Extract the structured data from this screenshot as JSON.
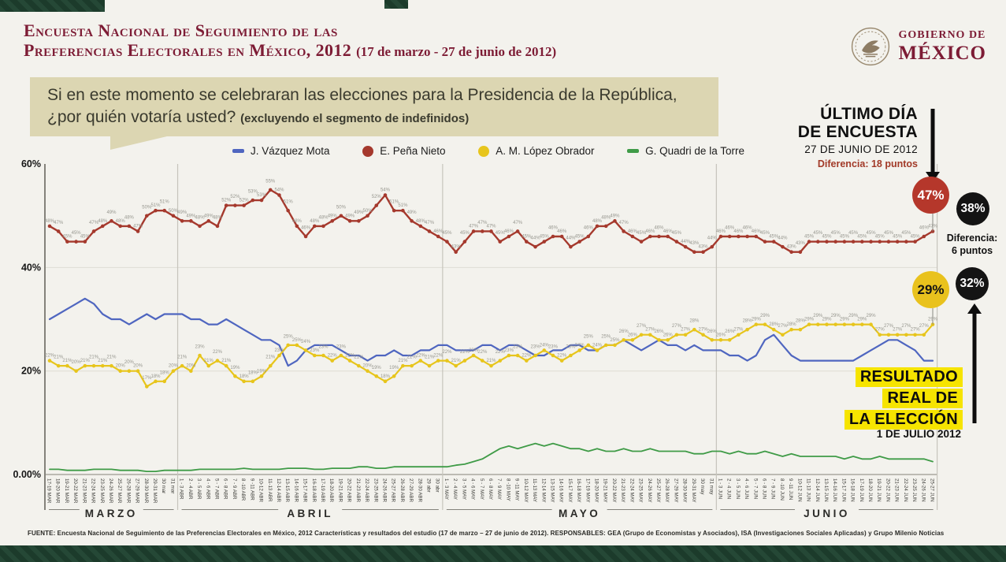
{
  "header": {
    "title_line1": "Encuesta Nacional de Seguimiento de las",
    "title_line2": "Preferencias Electorales en México, 2012",
    "title_daterange": "(17 de marzo - 27 de junio de 2012)",
    "logo_line1": "GOBIERNO DE",
    "logo_line2": "MÉXICO"
  },
  "question": {
    "text": "Si en este momento se celebraran las elecciones para la Presidencia de la República, ¿por quién votaría usted?",
    "note": "(excluyendo el segmento de indefinidos)"
  },
  "legend": {
    "items": [
      {
        "label": "J. Vázquez Mota",
        "color": "#4f66c0",
        "marker": "dash"
      },
      {
        "label": "E. Peña Nieto",
        "color": "#a5392d",
        "marker": "circle"
      },
      {
        "label": "A. M. López Obrador",
        "color": "#e7c51c",
        "marker": "circle"
      },
      {
        "label": "G. Quadri de la Torre",
        "color": "#3f9b47",
        "marker": "dash"
      }
    ]
  },
  "annotations": {
    "last_day_line1": "ÚLTIMO DÍA",
    "last_day_line2": "DE ENCUESTA",
    "last_day_date": "27 DE JUNIO DE 2012",
    "diff_top": "Diferencia: 18 puntos",
    "diff_top_color": "#a23a28",
    "diff_mid_line1": "Diferencia:",
    "diff_mid_line2": "6 puntos",
    "badges": {
      "pena_survey": {
        "value": "47%",
        "bg": "#b5372b",
        "fg": "#ffffff"
      },
      "pena_real": {
        "value": "38%",
        "bg": "#141414",
        "fg": "#ffffff"
      },
      "amlo_real": {
        "value": "32%",
        "bg": "#141414",
        "fg": "#ffffff"
      },
      "amlo_survey": {
        "value": "29%",
        "bg": "#e9c21d",
        "fg": "#141414"
      }
    },
    "result_line1": "RESULTADO",
    "result_line2": "REAL DE",
    "result_line3": "LA ELECCIÓN",
    "result_date": "1 DE JULIO 2012",
    "highlight_color": "#f6e400"
  },
  "footer": "FUENTE: Encuesta Nacional de Seguimiento de las Preferencias Electorales en México, 2012 Características y resultados del estudio (17 de marzo – 27 de junio de 2012). RESPONSABLES: GEA (Grupo de Economistas y Asociados), ISA (Investigaciones Sociales Aplicadas) y Grupo Milenio Noticias",
  "chart_data": {
    "type": "line",
    "title": "Seguimiento diario de preferencias electorales (promedios móviles de 3 días)",
    "ylim": [
      0,
      60
    ],
    "yticks": [
      {
        "value": 0,
        "label": "0.00%"
      },
      {
        "value": 20,
        "label": "20%"
      },
      {
        "value": 40,
        "label": "40%"
      },
      {
        "value": 60,
        "label": "60%"
      }
    ],
    "grid": "horizontal-light",
    "legend_position": "top",
    "months": [
      {
        "name": "MARZO",
        "count": 15
      },
      {
        "name": "ABRIL",
        "count": 30
      },
      {
        "name": "MAYO",
        "count": 31
      },
      {
        "name": "JUNIO",
        "count": 25
      }
    ],
    "x_labels": [
      "17-19 MAR",
      "18-20 MAR",
      "19-21 MAR",
      "20-22 MAR",
      "21-23 MAR",
      "22-24 MAR",
      "23-25 MAR",
      "24-26 MAR",
      "25-27 MAR",
      "26-28 MAR",
      "27-29 MAR",
      "28-30 MAR",
      "29-31 MAR",
      "30 mar",
      "31 mar",
      "1 - 3 ABR",
      "2 - 4 ABR",
      "3 - 5 ABR",
      "4 - 6 ABR",
      "5 - 7 ABR",
      "6 - 8 ABR",
      "7 - 9 ABR",
      "8 -10 ABR",
      "9 -11 ABR",
      "10-12 ABR",
      "11-13 ABR",
      "12-14 ABR",
      "13-15 ABR",
      "14-16 ABR",
      "15-17 ABR",
      "16-18 ABR",
      "17-19 ABR",
      "18-20 ABR",
      "19-21 ABR",
      "20-22 ABR",
      "21-23 ABR",
      "22-24 ABR",
      "23-25 ABR",
      "24-26 ABR",
      "25-27 ABR",
      "26-28 ABR",
      "27-29 ABR",
      "28-30 ABR",
      "29 abr",
      "30 abr",
      "1 - 3 MAY",
      "2 - 4 MAY",
      "3 - 5 MAY",
      "4 - 6 MAY",
      "5 - 7 MAY",
      "6 - 8 MAY",
      "7 - 9 MAY",
      "8 -10 MAY",
      "9 -11 MAY",
      "10-12 MAY",
      "11-13 MAY",
      "12-14 MAY",
      "13-15 MAY",
      "14-16 MAY",
      "15-17 MAY",
      "16-18 MAY",
      "17-19 MAY",
      "18-20 MAY",
      "19-21 MAY",
      "20-22 MAY",
      "21-23 MAY",
      "22-24 MAY",
      "23-25 MAY",
      "24-26 MAY",
      "25-27 MAY",
      "26-28 MAY",
      "27-29 MAY",
      "28-30 MAY",
      "29-31 MAY",
      "30 may",
      "31 may",
      "1 - 3 JUN",
      "2 - 4 JUN",
      "3 - 5 JUN",
      "4 - 6 JUN",
      "5 - 7 JUN",
      "6 - 8 JUN",
      "7 - 9 JUN",
      "8 -10 JUN",
      "9 -11 JUN",
      "10-12 JUN",
      "11-13 JUN",
      "12-14 JUN",
      "13-15 JUN",
      "14-16 JUN",
      "15-17 JUN",
      "16-18 JUN",
      "17-19 JUN",
      "18-20 JUN",
      "19-21 JUN",
      "20-22 JUN",
      "21-23 JUN",
      "22-24 JUN",
      "23-25 JUN",
      "24-26 JUN",
      "25-27 JUN"
    ],
    "series": [
      {
        "name": "J. Vázquez Mota",
        "color": "#4f66c0",
        "show_labels": false,
        "show_points": false,
        "values": [
          30,
          31,
          32,
          33,
          34,
          33,
          31,
          30,
          30,
          29,
          30,
          31,
          30,
          31,
          31,
          31,
          30,
          30,
          29,
          29,
          30,
          29,
          28,
          27,
          26,
          26,
          25,
          21,
          22,
          24,
          25,
          25,
          25,
          24,
          23,
          23,
          22,
          23,
          23,
          24,
          23,
          23,
          24,
          24,
          25,
          25,
          24,
          24,
          24,
          25,
          25,
          24,
          25,
          25,
          24,
          23,
          23,
          24,
          24,
          25,
          25,
          24,
          24,
          25,
          25,
          26,
          25,
          24,
          25,
          26,
          25,
          25,
          24,
          25,
          24,
          24,
          24,
          23,
          23,
          22,
          23,
          26,
          27,
          25,
          23,
          22,
          22,
          22,
          22,
          22,
          22,
          22,
          23,
          24,
          25,
          26,
          26,
          25,
          24,
          22,
          22
        ]
      },
      {
        "name": "E. Peña Nieto",
        "color": "#a5392d",
        "show_labels": true,
        "show_points": true,
        "values": [
          48,
          47,
          45,
          45,
          45,
          47,
          48,
          49,
          48,
          48,
          47,
          50,
          51,
          51,
          50,
          49,
          49,
          48,
          49,
          48,
          52,
          52,
          52,
          53,
          53,
          55,
          54,
          51,
          48,
          46,
          48,
          48,
          49,
          50,
          49,
          49,
          50,
          52,
          54,
          51,
          51,
          49,
          48,
          47,
          46,
          45,
          43,
          45,
          47,
          47,
          47,
          45,
          46,
          47,
          45,
          44,
          45,
          46,
          46,
          44,
          45,
          46,
          48,
          48,
          49,
          47,
          46,
          45,
          46,
          46,
          46,
          45,
          44,
          43,
          43,
          44,
          46,
          46,
          46,
          46,
          46,
          45,
          45,
          44,
          43,
          43,
          45,
          45,
          45,
          45,
          45,
          45,
          45,
          45,
          45,
          45,
          45,
          45,
          45,
          46,
          47
        ]
      },
      {
        "name": "A. M. López Obrador",
        "color": "#e7c51c",
        "show_labels": true,
        "show_points": true,
        "values": [
          22,
          21,
          21,
          20,
          21,
          21,
          21,
          21,
          20,
          20,
          20,
          17,
          18,
          18,
          20,
          21,
          20,
          23,
          21,
          22,
          21,
          19,
          18,
          18,
          19,
          21,
          23,
          25,
          25,
          24,
          23,
          23,
          22,
          23,
          22,
          21,
          20,
          19,
          18,
          19,
          21,
          21,
          22,
          21,
          22,
          22,
          21,
          22,
          23,
          22,
          21,
          22,
          23,
          23,
          22,
          23,
          24,
          23,
          22,
          23,
          24,
          25,
          24,
          25,
          25,
          26,
          26,
          27,
          27,
          26,
          26,
          27,
          27,
          28,
          27,
          26,
          26,
          26,
          27,
          28,
          29,
          29,
          28,
          27,
          28,
          28,
          29,
          29,
          29,
          29,
          29,
          29,
          29,
          29,
          27,
          27,
          27,
          27,
          27,
          27,
          29
        ]
      },
      {
        "name": "G. Quadri de la Torre",
        "color": "#3f9b47",
        "show_labels": false,
        "show_points": false,
        "values": [
          1,
          1,
          0.8,
          0.8,
          0.8,
          1,
          1,
          1,
          0.8,
          0.8,
          0.8,
          0.6,
          0.6,
          0.8,
          0.8,
          0.8,
          0.8,
          1,
          1,
          1,
          1,
          1,
          1.2,
          1,
          1,
          1,
          1,
          1.2,
          1.2,
          1.2,
          1,
          1,
          1.2,
          1.2,
          1.2,
          1.5,
          1.5,
          1.2,
          1.2,
          1.5,
          1.5,
          1.5,
          1.5,
          1.5,
          1.5,
          1.5,
          1.8,
          2,
          2.5,
          3,
          4,
          5,
          5.5,
          5,
          5.5,
          6,
          5.5,
          6,
          5.5,
          5,
          5,
          4.5,
          5,
          4.5,
          4.5,
          5,
          4.5,
          4.5,
          5,
          4.5,
          4.5,
          4.5,
          4.5,
          4,
          4,
          4.5,
          4.5,
          4,
          4.5,
          4,
          4,
          4.5,
          4,
          3.5,
          4,
          3.5,
          3.5,
          3.5,
          3.5,
          3.5,
          3,
          3.5,
          3,
          3,
          3.5,
          3,
          3,
          3,
          3,
          3,
          2.5
        ]
      }
    ]
  }
}
